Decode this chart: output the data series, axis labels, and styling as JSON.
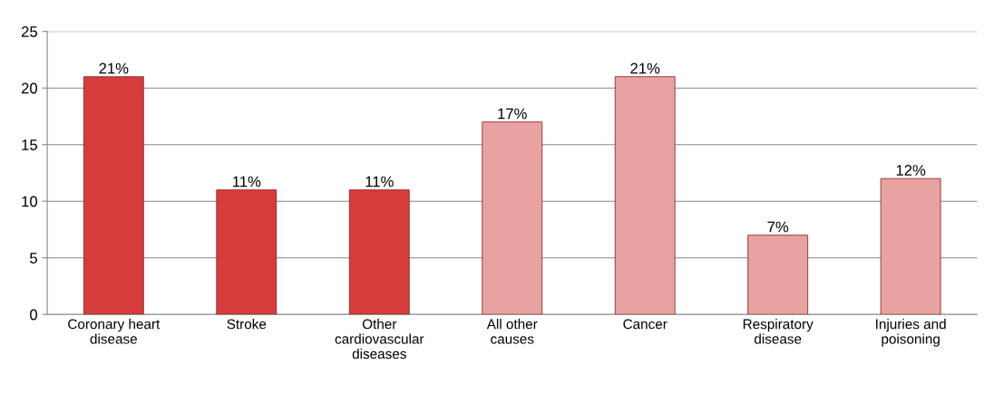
{
  "chart_data": {
    "type": "bar",
    "categories": [
      "Coronary heart\ndisease",
      "Stroke",
      "Other\ncardiovascular\ndiseases",
      "All other\ncauses",
      "Cancer",
      "Respiratory\ndisease",
      "Injuries and\npoisoning"
    ],
    "values": [
      21,
      11,
      11,
      17,
      21,
      7,
      12
    ],
    "colors": [
      "#d63c3c",
      "#d63c3c",
      "#d63c3c",
      "#e8a2a2",
      "#e8a2a2",
      "#e8a2a2",
      "#e8a2a2"
    ],
    "value_labels": [
      "21%",
      "11%",
      "11%",
      "17%",
      "21%",
      "7%",
      "12%"
    ],
    "ylim": [
      0,
      25
    ],
    "yticks": [
      0,
      5,
      10,
      15,
      20,
      25
    ],
    "grid": "y",
    "legend": false
  }
}
